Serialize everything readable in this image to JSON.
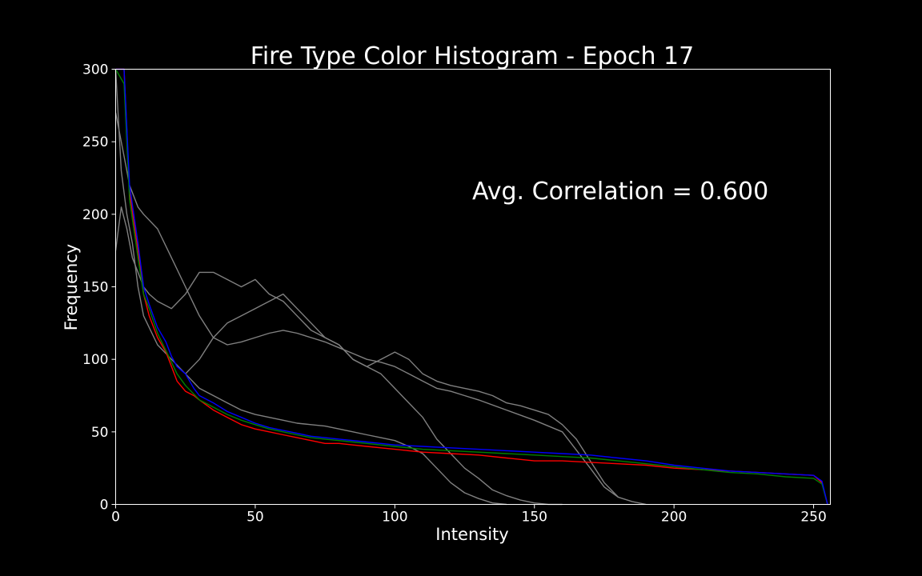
{
  "chart_data": {
    "type": "line",
    "title": "Fire Type Color Histogram - Epoch 17",
    "xlabel": "Intensity",
    "ylabel": "Frequency",
    "xlim": [
      0,
      256
    ],
    "ylim": [
      0,
      300
    ],
    "x_ticks": [
      0,
      50,
      100,
      150,
      200,
      250
    ],
    "y_ticks": [
      0,
      50,
      100,
      150,
      200,
      250,
      300
    ],
    "annotation": "Avg. Correlation = 0.600",
    "grid": false,
    "legend": "none",
    "colors": {
      "background": "#000000",
      "red": "#ff0000",
      "green": "#008000",
      "blue": "#0000ff",
      "reference": "#808080"
    },
    "series": [
      {
        "color": "#ff0000",
        "x": [
          0,
          3,
          5,
          8,
          10,
          12,
          15,
          18,
          20,
          22,
          25,
          28,
          30,
          35,
          40,
          45,
          50,
          55,
          60,
          65,
          70,
          75,
          80,
          85,
          90,
          95,
          100,
          110,
          120,
          130,
          140,
          150,
          160,
          170,
          180,
          190,
          200,
          210,
          220,
          230,
          240,
          250,
          253,
          255
        ],
        "y": [
          300,
          300,
          215,
          175,
          145,
          130,
          115,
          105,
          95,
          85,
          78,
          75,
          72,
          65,
          60,
          55,
          52,
          50,
          48,
          46,
          44,
          42,
          42,
          41,
          40,
          39,
          38,
          36,
          35,
          34,
          32,
          30,
          30,
          29,
          28,
          27,
          25,
          24,
          23,
          22,
          21,
          20,
          15,
          0
        ]
      },
      {
        "color": "#008000",
        "x": [
          0,
          3,
          5,
          8,
          10,
          12,
          15,
          18,
          20,
          22,
          25,
          28,
          30,
          35,
          40,
          45,
          50,
          55,
          60,
          65,
          70,
          75,
          80,
          85,
          90,
          95,
          100,
          110,
          120,
          130,
          140,
          150,
          160,
          170,
          180,
          190,
          200,
          210,
          220,
          230,
          240,
          250,
          253,
          255
        ],
        "y": [
          300,
          290,
          210,
          170,
          145,
          135,
          118,
          106,
          98,
          90,
          82,
          76,
          72,
          67,
          62,
          58,
          55,
          52,
          50,
          48,
          46,
          45,
          44,
          43,
          42,
          41,
          40,
          38,
          37,
          36,
          35,
          34,
          33,
          32,
          30,
          28,
          26,
          24,
          22,
          21,
          19,
          18,
          14,
          0
        ]
      },
      {
        "color": "#0000ff",
        "x": [
          0,
          3,
          5,
          8,
          10,
          12,
          15,
          18,
          20,
          22,
          25,
          28,
          30,
          35,
          40,
          45,
          50,
          55,
          60,
          65,
          70,
          75,
          80,
          85,
          90,
          95,
          100,
          110,
          120,
          130,
          140,
          150,
          160,
          170,
          180,
          190,
          200,
          210,
          220,
          230,
          240,
          250,
          253,
          255
        ],
        "y": [
          300,
          300,
          220,
          180,
          150,
          138,
          122,
          112,
          102,
          95,
          90,
          80,
          75,
          70,
          64,
          60,
          56,
          53,
          51,
          49,
          47,
          46,
          45,
          44,
          43,
          42,
          41,
          40,
          39,
          38,
          37,
          36,
          35,
          34,
          32,
          30,
          27,
          25,
          23,
          22,
          21,
          20,
          16,
          0
        ]
      },
      {
        "color": "#808080",
        "x": [
          0,
          2,
          4,
          6,
          8,
          10,
          12,
          15,
          20,
          25,
          30,
          35,
          40,
          45,
          50,
          55,
          60,
          65,
          70,
          75,
          80,
          85,
          90,
          95,
          100,
          105,
          110,
          115,
          120,
          125,
          130,
          135,
          140,
          145,
          150,
          155,
          160
        ],
        "y": [
          175,
          205,
          190,
          170,
          160,
          150,
          145,
          140,
          135,
          145,
          160,
          160,
          155,
          150,
          155,
          145,
          140,
          130,
          120,
          115,
          110,
          100,
          95,
          90,
          80,
          70,
          60,
          45,
          35,
          25,
          18,
          10,
          6,
          3,
          1,
          0,
          0
        ]
      },
      {
        "color": "#808080",
        "x": [
          0,
          3,
          5,
          8,
          10,
          15,
          20,
          25,
          30,
          35,
          40,
          45,
          50,
          55,
          60,
          65,
          70,
          75,
          80,
          85,
          90,
          95,
          100,
          105,
          110,
          115,
          120,
          125,
          130,
          140,
          150,
          160,
          170,
          175,
          180,
          185,
          190
        ],
        "y": [
          270,
          240,
          220,
          205,
          200,
          190,
          170,
          150,
          130,
          115,
          110,
          112,
          115,
          118,
          120,
          118,
          115,
          112,
          108,
          104,
          100,
          98,
          95,
          90,
          85,
          80,
          78,
          75,
          72,
          65,
          58,
          50,
          25,
          12,
          5,
          2,
          0
        ]
      },
      {
        "color": "#808080",
        "x": [
          0,
          2,
          4,
          6,
          8,
          10,
          15,
          20,
          25,
          30,
          35,
          40,
          45,
          50,
          55,
          60,
          65,
          70,
          75,
          80,
          85,
          90,
          95,
          100,
          105,
          110,
          115,
          120,
          125,
          130,
          135,
          140
        ],
        "y": [
          300,
          230,
          200,
          180,
          150,
          130,
          110,
          100,
          90,
          80,
          75,
          70,
          65,
          62,
          60,
          58,
          56,
          55,
          54,
          52,
          50,
          48,
          46,
          44,
          40,
          35,
          25,
          15,
          8,
          4,
          1,
          0
        ]
      },
      {
        "color": "#808080",
        "x": [
          25,
          30,
          35,
          40,
          45,
          50,
          55,
          60,
          65,
          70,
          75,
          80,
          85,
          90,
          95,
          100,
          105,
          110,
          115,
          120,
          125,
          130,
          135,
          140,
          145,
          150,
          155,
          160,
          165,
          170,
          175,
          180
        ],
        "y": [
          90,
          100,
          115,
          125,
          130,
          135,
          140,
          145,
          135,
          125,
          115,
          110,
          100,
          95,
          100,
          105,
          100,
          90,
          85,
          82,
          80,
          78,
          75,
          70,
          68,
          65,
          62,
          55,
          45,
          30,
          15,
          5
        ]
      }
    ]
  }
}
